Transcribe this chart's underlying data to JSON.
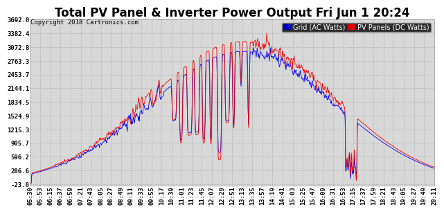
{
  "title": "Total PV Panel & Inverter Power Output Fri Jun 1 20:24",
  "copyright": "Copyright 2018 Cartronics.com",
  "legend_grid": "Grid (AC Watts)",
  "legend_pv": "PV Panels (DC Watts)",
  "legend_grid_bg": "#0000bb",
  "legend_pv_bg": "#dd0000",
  "grid_color": "#0000ee",
  "pv_color": "#ee0000",
  "bg_color": "#ffffff",
  "plot_bg": "#d8d8d8",
  "yticks": [
    -23.0,
    286.6,
    596.2,
    905.7,
    1215.3,
    1524.9,
    1834.5,
    2144.1,
    2453.7,
    2763.3,
    3072.8,
    3382.4,
    3692.0
  ],
  "ymin": -23.0,
  "ymax": 3692.0,
  "title_fontsize": 12,
  "copyright_fontsize": 6.5,
  "tick_fontsize": 6.5,
  "legend_fontsize": 7
}
